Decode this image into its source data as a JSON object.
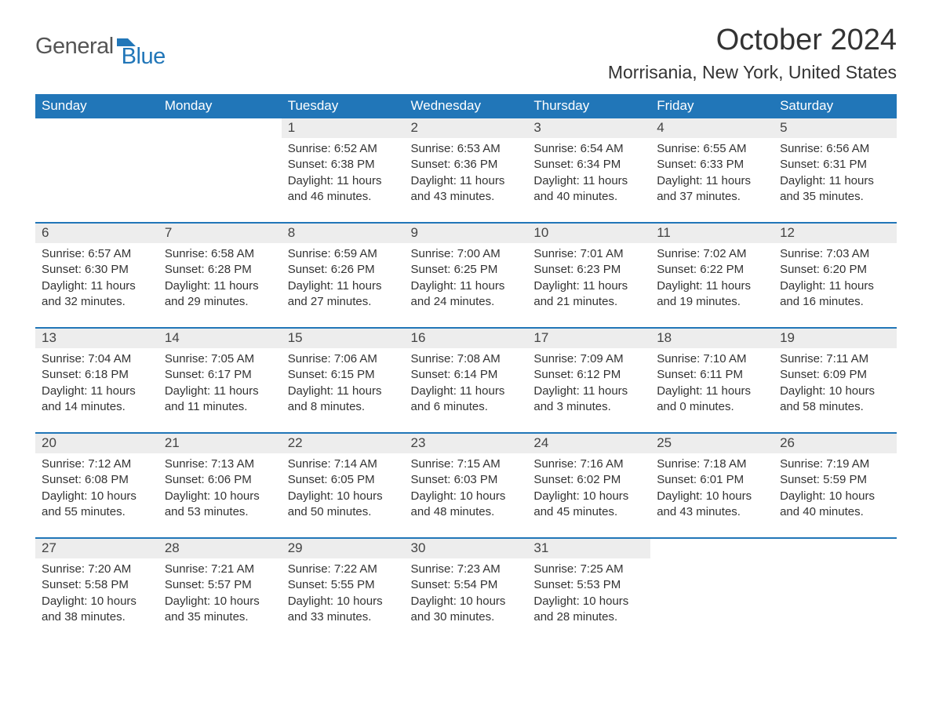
{
  "logo": {
    "text1": "General",
    "text2": "Blue"
  },
  "title": "October 2024",
  "location": "Morrisania, New York, United States",
  "colors": {
    "header_bg": "#2176b8",
    "header_text": "#ffffff",
    "daynum_bg": "#ededed",
    "row_border": "#2176b8",
    "body_text": "#333333",
    "logo_gray": "#555555",
    "logo_blue": "#2176b8",
    "page_bg": "#ffffff"
  },
  "typography": {
    "month_title_fontsize": 38,
    "location_fontsize": 23,
    "header_fontsize": 17,
    "daynum_fontsize": 17,
    "detail_fontsize": 15,
    "logo_fontsize": 29
  },
  "day_headers": [
    "Sunday",
    "Monday",
    "Tuesday",
    "Wednesday",
    "Thursday",
    "Friday",
    "Saturday"
  ],
  "weeks": [
    [
      null,
      null,
      {
        "n": "1",
        "sunrise": "6:52 AM",
        "sunset": "6:38 PM",
        "daylight": "11 hours and 46 minutes."
      },
      {
        "n": "2",
        "sunrise": "6:53 AM",
        "sunset": "6:36 PM",
        "daylight": "11 hours and 43 minutes."
      },
      {
        "n": "3",
        "sunrise": "6:54 AM",
        "sunset": "6:34 PM",
        "daylight": "11 hours and 40 minutes."
      },
      {
        "n": "4",
        "sunrise": "6:55 AM",
        "sunset": "6:33 PM",
        "daylight": "11 hours and 37 minutes."
      },
      {
        "n": "5",
        "sunrise": "6:56 AM",
        "sunset": "6:31 PM",
        "daylight": "11 hours and 35 minutes."
      }
    ],
    [
      {
        "n": "6",
        "sunrise": "6:57 AM",
        "sunset": "6:30 PM",
        "daylight": "11 hours and 32 minutes."
      },
      {
        "n": "7",
        "sunrise": "6:58 AM",
        "sunset": "6:28 PM",
        "daylight": "11 hours and 29 minutes."
      },
      {
        "n": "8",
        "sunrise": "6:59 AM",
        "sunset": "6:26 PM",
        "daylight": "11 hours and 27 minutes."
      },
      {
        "n": "9",
        "sunrise": "7:00 AM",
        "sunset": "6:25 PM",
        "daylight": "11 hours and 24 minutes."
      },
      {
        "n": "10",
        "sunrise": "7:01 AM",
        "sunset": "6:23 PM",
        "daylight": "11 hours and 21 minutes."
      },
      {
        "n": "11",
        "sunrise": "7:02 AM",
        "sunset": "6:22 PM",
        "daylight": "11 hours and 19 minutes."
      },
      {
        "n": "12",
        "sunrise": "7:03 AM",
        "sunset": "6:20 PM",
        "daylight": "11 hours and 16 minutes."
      }
    ],
    [
      {
        "n": "13",
        "sunrise": "7:04 AM",
        "sunset": "6:18 PM",
        "daylight": "11 hours and 14 minutes."
      },
      {
        "n": "14",
        "sunrise": "7:05 AM",
        "sunset": "6:17 PM",
        "daylight": "11 hours and 11 minutes."
      },
      {
        "n": "15",
        "sunrise": "7:06 AM",
        "sunset": "6:15 PM",
        "daylight": "11 hours and 8 minutes."
      },
      {
        "n": "16",
        "sunrise": "7:08 AM",
        "sunset": "6:14 PM",
        "daylight": "11 hours and 6 minutes."
      },
      {
        "n": "17",
        "sunrise": "7:09 AM",
        "sunset": "6:12 PM",
        "daylight": "11 hours and 3 minutes."
      },
      {
        "n": "18",
        "sunrise": "7:10 AM",
        "sunset": "6:11 PM",
        "daylight": "11 hours and 0 minutes."
      },
      {
        "n": "19",
        "sunrise": "7:11 AM",
        "sunset": "6:09 PM",
        "daylight": "10 hours and 58 minutes."
      }
    ],
    [
      {
        "n": "20",
        "sunrise": "7:12 AM",
        "sunset": "6:08 PM",
        "daylight": "10 hours and 55 minutes."
      },
      {
        "n": "21",
        "sunrise": "7:13 AM",
        "sunset": "6:06 PM",
        "daylight": "10 hours and 53 minutes."
      },
      {
        "n": "22",
        "sunrise": "7:14 AM",
        "sunset": "6:05 PM",
        "daylight": "10 hours and 50 minutes."
      },
      {
        "n": "23",
        "sunrise": "7:15 AM",
        "sunset": "6:03 PM",
        "daylight": "10 hours and 48 minutes."
      },
      {
        "n": "24",
        "sunrise": "7:16 AM",
        "sunset": "6:02 PM",
        "daylight": "10 hours and 45 minutes."
      },
      {
        "n": "25",
        "sunrise": "7:18 AM",
        "sunset": "6:01 PM",
        "daylight": "10 hours and 43 minutes."
      },
      {
        "n": "26",
        "sunrise": "7:19 AM",
        "sunset": "5:59 PM",
        "daylight": "10 hours and 40 minutes."
      }
    ],
    [
      {
        "n": "27",
        "sunrise": "7:20 AM",
        "sunset": "5:58 PM",
        "daylight": "10 hours and 38 minutes."
      },
      {
        "n": "28",
        "sunrise": "7:21 AM",
        "sunset": "5:57 PM",
        "daylight": "10 hours and 35 minutes."
      },
      {
        "n": "29",
        "sunrise": "7:22 AM",
        "sunset": "5:55 PM",
        "daylight": "10 hours and 33 minutes."
      },
      {
        "n": "30",
        "sunrise": "7:23 AM",
        "sunset": "5:54 PM",
        "daylight": "10 hours and 30 minutes."
      },
      {
        "n": "31",
        "sunrise": "7:25 AM",
        "sunset": "5:53 PM",
        "daylight": "10 hours and 28 minutes."
      },
      null,
      null
    ]
  ],
  "labels": {
    "sunrise": "Sunrise: ",
    "sunset": "Sunset: ",
    "daylight": "Daylight: "
  }
}
